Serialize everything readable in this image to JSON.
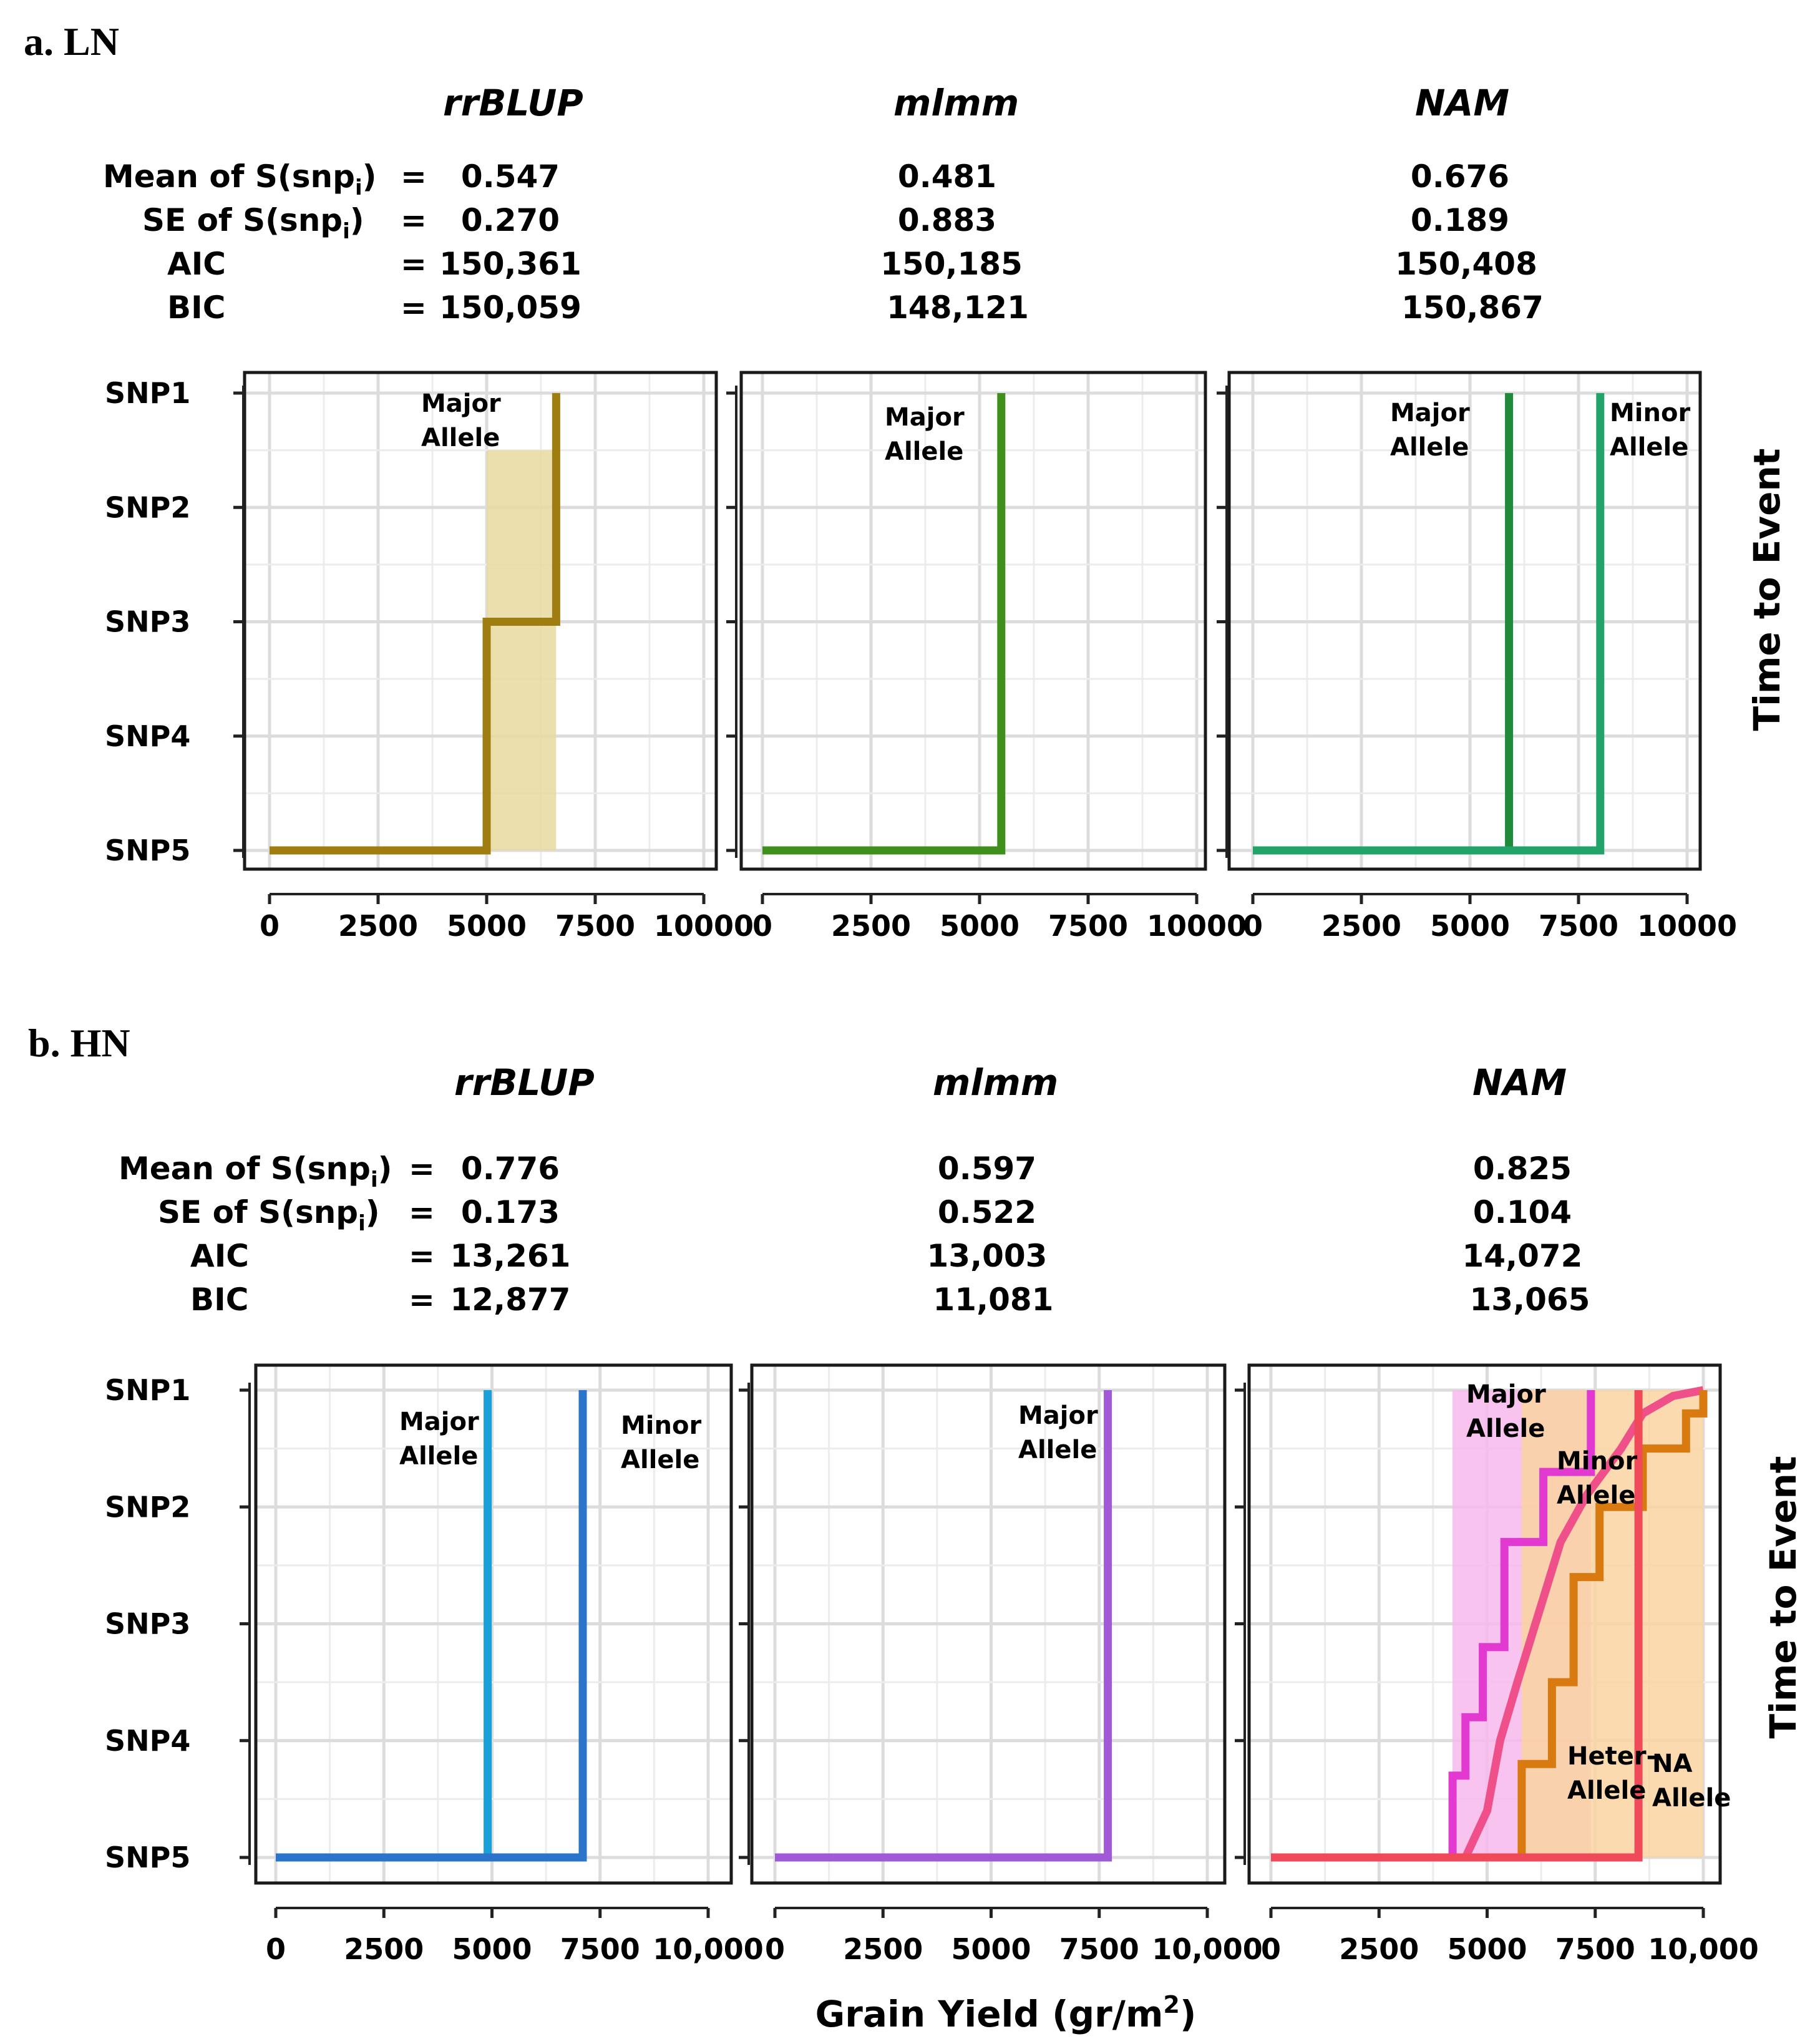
{
  "panels": [
    {
      "title": "a. LN",
      "stat_labels": {
        "mean": "Mean of  S(snp",
        "se": "SE of  S(snp",
        "aic": "AIC",
        "bic": "BIC",
        "sub": "i",
        "close": ")",
        "eq": "="
      },
      "methods": [
        {
          "name": "rrBLUP",
          "mean": "0.547",
          "se": "0.270",
          "aic": "150,361",
          "bic": "150,059"
        },
        {
          "name": "mlmm",
          "mean": "0.481",
          "se": "0.883",
          "aic": "150,185",
          "bic": "148,121"
        },
        {
          "name": "NAM",
          "mean": "0.676",
          "se": "0.189",
          "aic": "150,408",
          "bic": "150,867"
        }
      ],
      "ylabel": "Time to Event"
    },
    {
      "title": "b. HN",
      "stat_labels": {
        "mean": "Mean of  S(snp",
        "se": "SE of  S(snp",
        "aic": "AIC",
        "bic": "BIC",
        "sub": "i",
        "close": ")",
        "eq": "="
      },
      "methods": [
        {
          "name": "rrBLUP",
          "mean": "0.776",
          "se": "0.173",
          "aic": "13,261",
          "bic": "12,877"
        },
        {
          "name": "mlmm",
          "mean": "0.597",
          "se": "0.522",
          "aic": "13,003",
          "bic": "11,081"
        },
        {
          "name": "NAM",
          "mean": "0.825",
          "se": "0.104",
          "aic": "14,072",
          "bic": "13,065"
        }
      ],
      "ylabel": "Time to Event",
      "xlabel": "Grain Yield (gr/m",
      "xlabel_sup": "2",
      "xlabel_close": ")"
    }
  ],
  "chart_data": [
    {
      "type": "line",
      "panel": "a. LN",
      "method": "rrBLUP",
      "y_categories": [
        "SNP1",
        "SNP2",
        "SNP3",
        "SNP4",
        "SNP5"
      ],
      "x_ticks": [
        "0",
        "2500",
        "5000",
        "7500",
        "10000"
      ],
      "xlim": [
        0,
        10000
      ],
      "series": [
        {
          "name": "Major Allele",
          "color": "#a07d10",
          "points": [
            [
              0,
              "SNP5"
            ],
            [
              5000,
              "SNP5"
            ],
            [
              5000,
              "SNP3"
            ],
            [
              6600,
              "SNP3"
            ],
            [
              6600,
              "SNP1"
            ]
          ],
          "ci": {
            "x": [
              5000,
              6600
            ],
            "y": [
              "SNP5",
              "SNP1.5"
            ],
            "color": "#e8d9a0"
          }
        }
      ]
    },
    {
      "type": "line",
      "panel": "a. LN",
      "method": "mlmm",
      "y_categories": [
        "SNP1",
        "SNP2",
        "SNP3",
        "SNP4",
        "SNP5"
      ],
      "x_ticks": [
        "0",
        "2500",
        "5000",
        "7500",
        "10000"
      ],
      "xlim": [
        0,
        10000
      ],
      "series": [
        {
          "name": "Major Allele",
          "color": "#3f8f1c",
          "points": [
            [
              0,
              "SNP5"
            ],
            [
              5500,
              "SNP5"
            ],
            [
              5500,
              "SNP1"
            ]
          ]
        }
      ]
    },
    {
      "type": "line",
      "panel": "a. LN",
      "method": "NAM",
      "y_categories": [
        "SNP1",
        "SNP2",
        "SNP3",
        "SNP4",
        "SNP5"
      ],
      "x_ticks": [
        "0",
        "2500",
        "5000",
        "7500",
        "10000"
      ],
      "xlim": [
        0,
        10000
      ],
      "series": [
        {
          "name": "Major Allele",
          "color": "#1e8a3a",
          "points": [
            [
              0,
              "SNP5"
            ],
            [
              5900,
              "SNP5"
            ],
            [
              5900,
              "SNP1"
            ]
          ]
        },
        {
          "name": "Minor Allele",
          "color": "#22a36a",
          "points": [
            [
              0,
              "SNP5"
            ],
            [
              8000,
              "SNP5"
            ],
            [
              8000,
              "SNP1"
            ]
          ]
        }
      ]
    },
    {
      "type": "line",
      "panel": "b. HN",
      "method": "rrBLUP",
      "y_categories": [
        "SNP1",
        "SNP2",
        "SNP3",
        "SNP4",
        "SNP5"
      ],
      "x_ticks": [
        "0",
        "2500",
        "5000",
        "7500",
        "10,000"
      ],
      "xlim": [
        0,
        10000
      ],
      "series": [
        {
          "name": "Major Allele",
          "color": "#1aa0d8",
          "points": [
            [
              0,
              "SNP5"
            ],
            [
              4900,
              "SNP5"
            ],
            [
              4900,
              "SNP1"
            ]
          ]
        },
        {
          "name": "Minor Allele",
          "color": "#2a74c9",
          "points": [
            [
              0,
              "SNP5"
            ],
            [
              7100,
              "SNP5"
            ],
            [
              7100,
              "SNP1"
            ]
          ]
        }
      ]
    },
    {
      "type": "line",
      "panel": "b. HN",
      "method": "mlmm",
      "y_categories": [
        "SNP1",
        "SNP2",
        "SNP3",
        "SNP4",
        "SNP5"
      ],
      "x_ticks": [
        "0",
        "2500",
        "5000",
        "7500",
        "10,000"
      ],
      "xlim": [
        0,
        10000
      ],
      "series": [
        {
          "name": "Major Allele",
          "color": "#a05ad8",
          "points": [
            [
              0,
              "SNP5"
            ],
            [
              7700,
              "SNP5"
            ],
            [
              7700,
              "SNP1"
            ]
          ]
        }
      ]
    },
    {
      "type": "line",
      "panel": "b. HN",
      "method": "NAM",
      "y_categories": [
        "SNP1",
        "SNP2",
        "SNP3",
        "SNP4",
        "SNP5"
      ],
      "x_ticks": [
        "0",
        "2500",
        "5000",
        "7500",
        "10,000"
      ],
      "xlim": [
        0,
        10000
      ],
      "series": [
        {
          "name": "Major Allele",
          "color": "#e23ad0",
          "points": [
            [
              0,
              "SNP5"
            ],
            [
              4200,
              "SNP5"
            ],
            [
              4200,
              "SNP4.3"
            ],
            [
              4500,
              "SNP4.3"
            ],
            [
              4500,
              "SNP3.8"
            ],
            [
              4900,
              "SNP3.8"
            ],
            [
              4900,
              "SNP3.2"
            ],
            [
              5400,
              "SNP3.2"
            ],
            [
              5400,
              "SNP2.3"
            ],
            [
              6300,
              "SNP2.3"
            ],
            [
              6300,
              "SNP1.7"
            ],
            [
              7400,
              "SNP1.7"
            ],
            [
              7400,
              "SNP1"
            ]
          ],
          "ci": {
            "x": [
              4200,
              7400
            ],
            "y": [
              "SNP5",
              "SNP1"
            ],
            "color": "#f7b8ec"
          }
        },
        {
          "name": "Minor Allele",
          "color": "#f0508a",
          "points": [
            [
              0,
              "SNP5"
            ],
            [
              4500,
              "SNP5"
            ],
            [
              5000,
              "SNP4.6"
            ],
            [
              5300,
              "SNP4.0"
            ],
            [
              5700,
              "SNP3.5"
            ],
            [
              6200,
              "SNP2.9"
            ],
            [
              6700,
              "SNP2.3"
            ],
            [
              7300,
              "SNP1.9"
            ],
            [
              8100,
              "SNP1.5"
            ],
            [
              8600,
              "SNP1.2"
            ],
            [
              9300,
              "SNP1.05"
            ],
            [
              10000,
              "SNP1"
            ]
          ]
        },
        {
          "name": "Heter- Allele",
          "color": "#d97a10",
          "points": [
            [
              0,
              "SNP5"
            ],
            [
              5800,
              "SNP5"
            ],
            [
              5800,
              "SNP4.2"
            ],
            [
              6500,
              "SNP4.2"
            ],
            [
              6500,
              "SNP3.5"
            ],
            [
              7000,
              "SNP3.5"
            ],
            [
              7000,
              "SNP2.6"
            ],
            [
              7600,
              "SNP2.6"
            ],
            [
              7600,
              "SNP2.0"
            ],
            [
              8600,
              "SNP2.0"
            ],
            [
              8600,
              "SNP1.5"
            ],
            [
              9600,
              "SNP1.5"
            ],
            [
              9600,
              "SNP1.2"
            ],
            [
              10000,
              "SNP1.2"
            ],
            [
              10000,
              "SNP1"
            ]
          ],
          "ci": {
            "x": [
              5800,
              10000
            ],
            "y": [
              "SNP5",
              "SNP1"
            ],
            "color": "#f9d3a0"
          }
        },
        {
          "name": "NA Allele",
          "color": "#f04a5a",
          "points": [
            [
              0,
              "SNP5"
            ],
            [
              8500,
              "SNP5"
            ],
            [
              8500,
              "SNP1"
            ]
          ]
        }
      ]
    }
  ]
}
